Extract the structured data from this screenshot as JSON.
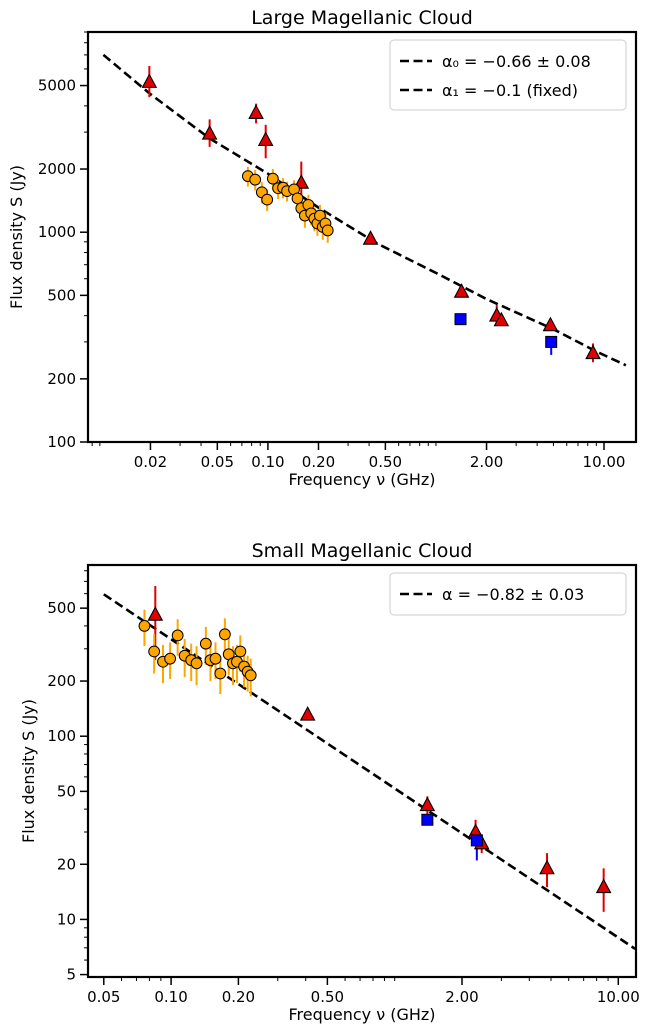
{
  "chart_data": [
    {
      "type": "scatter",
      "title": "Large Magellanic Cloud",
      "xlabel": "Frequency ν (GHz)",
      "ylabel": "Flux density S (Jy)",
      "xscale": "log",
      "yscale": "log",
      "xlim": [
        0.0085,
        15.5
      ],
      "ylim": [
        100,
        9000
      ],
      "xticks": [
        {
          "value": 0.02,
          "label": "0.02"
        },
        {
          "value": 0.05,
          "label": "0.05"
        },
        {
          "value": 0.1,
          "label": "0.10"
        },
        {
          "value": 0.2,
          "label": "0.20"
        },
        {
          "value": 0.5,
          "label": "0.50"
        },
        {
          "value": 2.0,
          "label": "2.00"
        },
        {
          "value": 10.0,
          "label": "10.00"
        }
      ],
      "yticks": [
        {
          "value": 100,
          "label": "100"
        },
        {
          "value": 200,
          "label": "200"
        },
        {
          "value": 500,
          "label": "500"
        },
        {
          "value": 1000,
          "label": "1000"
        },
        {
          "value": 2000,
          "label": "2000"
        },
        {
          "value": 5000,
          "label": "5000"
        }
      ],
      "legend_position": "top-right",
      "legend": [
        {
          "label": "α₀ = −0.66 ± 0.08",
          "style": "dashed"
        },
        {
          "label": "α₁ = −0.1 (fixed)",
          "style": "dashed"
        }
      ],
      "fit_curve": {
        "style": "dashed",
        "color": "#000000",
        "points": [
          [
            0.0105,
            7000
          ],
          [
            0.02,
            4550
          ],
          [
            0.045,
            2800
          ],
          [
            0.1,
            1900
          ],
          [
            0.2,
            1310
          ],
          [
            0.45,
            880
          ],
          [
            1.0,
            640
          ],
          [
            2.0,
            480
          ],
          [
            5.0,
            345
          ],
          [
            9.0,
            270
          ],
          [
            13.5,
            232
          ]
        ]
      },
      "series": [
        {
          "marker": "triangle",
          "color": "#e00000",
          "errcolor": "#e00000",
          "points": [
            {
              "x": 0.0197,
              "y": 5200,
              "err": [
                800,
                1000
              ]
            },
            {
              "x": 0.045,
              "y": 2950,
              "err": [
                400,
                500
              ]
            },
            {
              "x": 0.085,
              "y": 3700,
              "err": [
                400,
                400
              ]
            },
            {
              "x": 0.097,
              "y": 2750,
              "err": [
                500,
                500
              ]
            },
            {
              "x": 0.158,
              "y": 1720,
              "err": [
                350,
                450
              ]
            },
            {
              "x": 0.408,
              "y": 930,
              "err": [
                30,
                30
              ]
            },
            {
              "x": 1.42,
              "y": 520,
              "err": [
                20,
                20
              ]
            },
            {
              "x": 2.3,
              "y": 400,
              "err": [
                40,
                50
              ]
            },
            {
              "x": 2.45,
              "y": 380,
              "err": [
                20,
                20
              ]
            },
            {
              "x": 4.8,
              "y": 360,
              "err": [
                20,
                20
              ]
            },
            {
              "x": 8.6,
              "y": 265,
              "err": [
                25,
                30
              ]
            }
          ]
        },
        {
          "marker": "circle",
          "color": "#ffa500",
          "errcolor": "#ffa500",
          "points": [
            {
              "x": 0.076,
              "y": 1850,
              "err": [
                200,
                200
              ]
            },
            {
              "x": 0.084,
              "y": 1780,
              "err": [
                200,
                200
              ]
            },
            {
              "x": 0.092,
              "y": 1550,
              "err": [
                180,
                180
              ]
            },
            {
              "x": 0.099,
              "y": 1430,
              "err": [
                170,
                170
              ]
            },
            {
              "x": 0.107,
              "y": 1800,
              "err": [
                200,
                200
              ]
            },
            {
              "x": 0.115,
              "y": 1620,
              "err": [
                180,
                180
              ]
            },
            {
              "x": 0.123,
              "y": 1630,
              "err": [
                180,
                180
              ]
            },
            {
              "x": 0.13,
              "y": 1570,
              "err": [
                170,
                170
              ]
            },
            {
              "x": 0.143,
              "y": 1600,
              "err": [
                170,
                170
              ]
            },
            {
              "x": 0.15,
              "y": 1450,
              "err": [
                170,
                170
              ]
            },
            {
              "x": 0.158,
              "y": 1300,
              "err": [
                160,
                160
              ]
            },
            {
              "x": 0.166,
              "y": 1200,
              "err": [
                150,
                150
              ]
            },
            {
              "x": 0.174,
              "y": 1350,
              "err": [
                160,
                160
              ]
            },
            {
              "x": 0.181,
              "y": 1230,
              "err": [
                150,
                150
              ]
            },
            {
              "x": 0.189,
              "y": 1160,
              "err": [
                150,
                150
              ]
            },
            {
              "x": 0.197,
              "y": 1100,
              "err": [
                140,
                140
              ]
            },
            {
              "x": 0.204,
              "y": 1200,
              "err": [
                150,
                150
              ]
            },
            {
              "x": 0.212,
              "y": 1060,
              "err": [
                140,
                140
              ]
            },
            {
              "x": 0.22,
              "y": 1100,
              "err": [
                140,
                140
              ]
            },
            {
              "x": 0.227,
              "y": 1020,
              "err": [
                130,
                130
              ]
            }
          ]
        },
        {
          "marker": "square",
          "color": "#0000ff",
          "errcolor": "#0000ff",
          "points": [
            {
              "x": 1.4,
              "y": 385,
              "err": [
                15,
                15
              ]
            },
            {
              "x": 4.85,
              "y": 300,
              "err": [
                40,
                20
              ]
            }
          ]
        }
      ]
    },
    {
      "type": "scatter",
      "title": "Small Magellanic Cloud",
      "xlabel": "Frequency ν (GHz)",
      "ylabel": "Flux density S (Jy)",
      "xscale": "log",
      "yscale": "log",
      "xlim": [
        0.0425,
        12.0
      ],
      "ylim": [
        4.85,
        860
      ],
      "xticks": [
        {
          "value": 0.05,
          "label": "0.05"
        },
        {
          "value": 0.1,
          "label": "0.10"
        },
        {
          "value": 0.2,
          "label": "0.20"
        },
        {
          "value": 0.5,
          "label": "0.50"
        },
        {
          "value": 2.0,
          "label": "2.00"
        },
        {
          "value": 10.0,
          "label": "10.00"
        }
      ],
      "yticks": [
        {
          "value": 5,
          "label": "5"
        },
        {
          "value": 10,
          "label": "10"
        },
        {
          "value": 20,
          "label": "20"
        },
        {
          "value": 50,
          "label": "50"
        },
        {
          "value": 100,
          "label": "100"
        },
        {
          "value": 200,
          "label": "200"
        },
        {
          "value": 500,
          "label": "500"
        }
      ],
      "legend_position": "top-right",
      "legend": [
        {
          "label": "α = −0.82 ± 0.03",
          "style": "dashed"
        }
      ],
      "fit_curve": {
        "style": "dashed",
        "color": "#000000",
        "points": [
          [
            0.05,
            595
          ],
          [
            11.9,
            6.9
          ]
        ]
      },
      "series": [
        {
          "marker": "triangle",
          "color": "#e00000",
          "errcolor": "#e00000",
          "points": [
            {
              "x": 0.085,
              "y": 460,
              "err": [
                200,
                200
              ]
            },
            {
              "x": 0.408,
              "y": 131,
              "err": [
                5,
                5
              ]
            },
            {
              "x": 1.4,
              "y": 42,
              "err": [
                5,
                5
              ]
            },
            {
              "x": 2.3,
              "y": 30,
              "err": [
                5,
                5
              ]
            },
            {
              "x": 2.45,
              "y": 26,
              "err": [
                3,
                3
              ]
            },
            {
              "x": 4.8,
              "y": 19,
              "err": [
                4,
                4
              ]
            },
            {
              "x": 8.6,
              "y": 15,
              "err": [
                4,
                4
              ]
            }
          ]
        },
        {
          "marker": "circle",
          "color": "#ffa500",
          "errcolor": "#ffa500",
          "points": [
            {
              "x": 0.076,
              "y": 400,
              "err": [
                90,
                90
              ]
            },
            {
              "x": 0.084,
              "y": 290,
              "err": [
                70,
                70
              ]
            },
            {
              "x": 0.092,
              "y": 255,
              "err": [
                60,
                60
              ]
            },
            {
              "x": 0.099,
              "y": 265,
              "err": [
                60,
                60
              ]
            },
            {
              "x": 0.107,
              "y": 355,
              "err": [
                80,
                80
              ]
            },
            {
              "x": 0.115,
              "y": 275,
              "err": [
                65,
                65
              ]
            },
            {
              "x": 0.123,
              "y": 260,
              "err": [
                60,
                60
              ]
            },
            {
              "x": 0.13,
              "y": 250,
              "err": [
                60,
                60
              ]
            },
            {
              "x": 0.143,
              "y": 320,
              "err": [
                75,
                75
              ]
            },
            {
              "x": 0.15,
              "y": 260,
              "err": [
                60,
                60
              ]
            },
            {
              "x": 0.158,
              "y": 265,
              "err": [
                60,
                60
              ]
            },
            {
              "x": 0.166,
              "y": 220,
              "err": [
                50,
                50
              ]
            },
            {
              "x": 0.174,
              "y": 360,
              "err": [
                80,
                80
              ]
            },
            {
              "x": 0.181,
              "y": 280,
              "err": [
                65,
                65
              ]
            },
            {
              "x": 0.189,
              "y": 250,
              "err": [
                60,
                60
              ]
            },
            {
              "x": 0.197,
              "y": 255,
              "err": [
                60,
                60
              ]
            },
            {
              "x": 0.204,
              "y": 290,
              "err": [
                65,
                65
              ]
            },
            {
              "x": 0.212,
              "y": 240,
              "err": [
                55,
                55
              ]
            },
            {
              "x": 0.22,
              "y": 225,
              "err": [
                50,
                50
              ]
            },
            {
              "x": 0.227,
              "y": 215,
              "err": [
                50,
                50
              ]
            }
          ]
        },
        {
          "marker": "square",
          "color": "#0000ff",
          "errcolor": "#0000ff",
          "points": [
            {
              "x": 1.4,
              "y": 35,
              "err": [
                2,
                2
              ]
            },
            {
              "x": 2.33,
              "y": 27,
              "err": [
                6,
                3
              ]
            }
          ]
        }
      ]
    }
  ]
}
